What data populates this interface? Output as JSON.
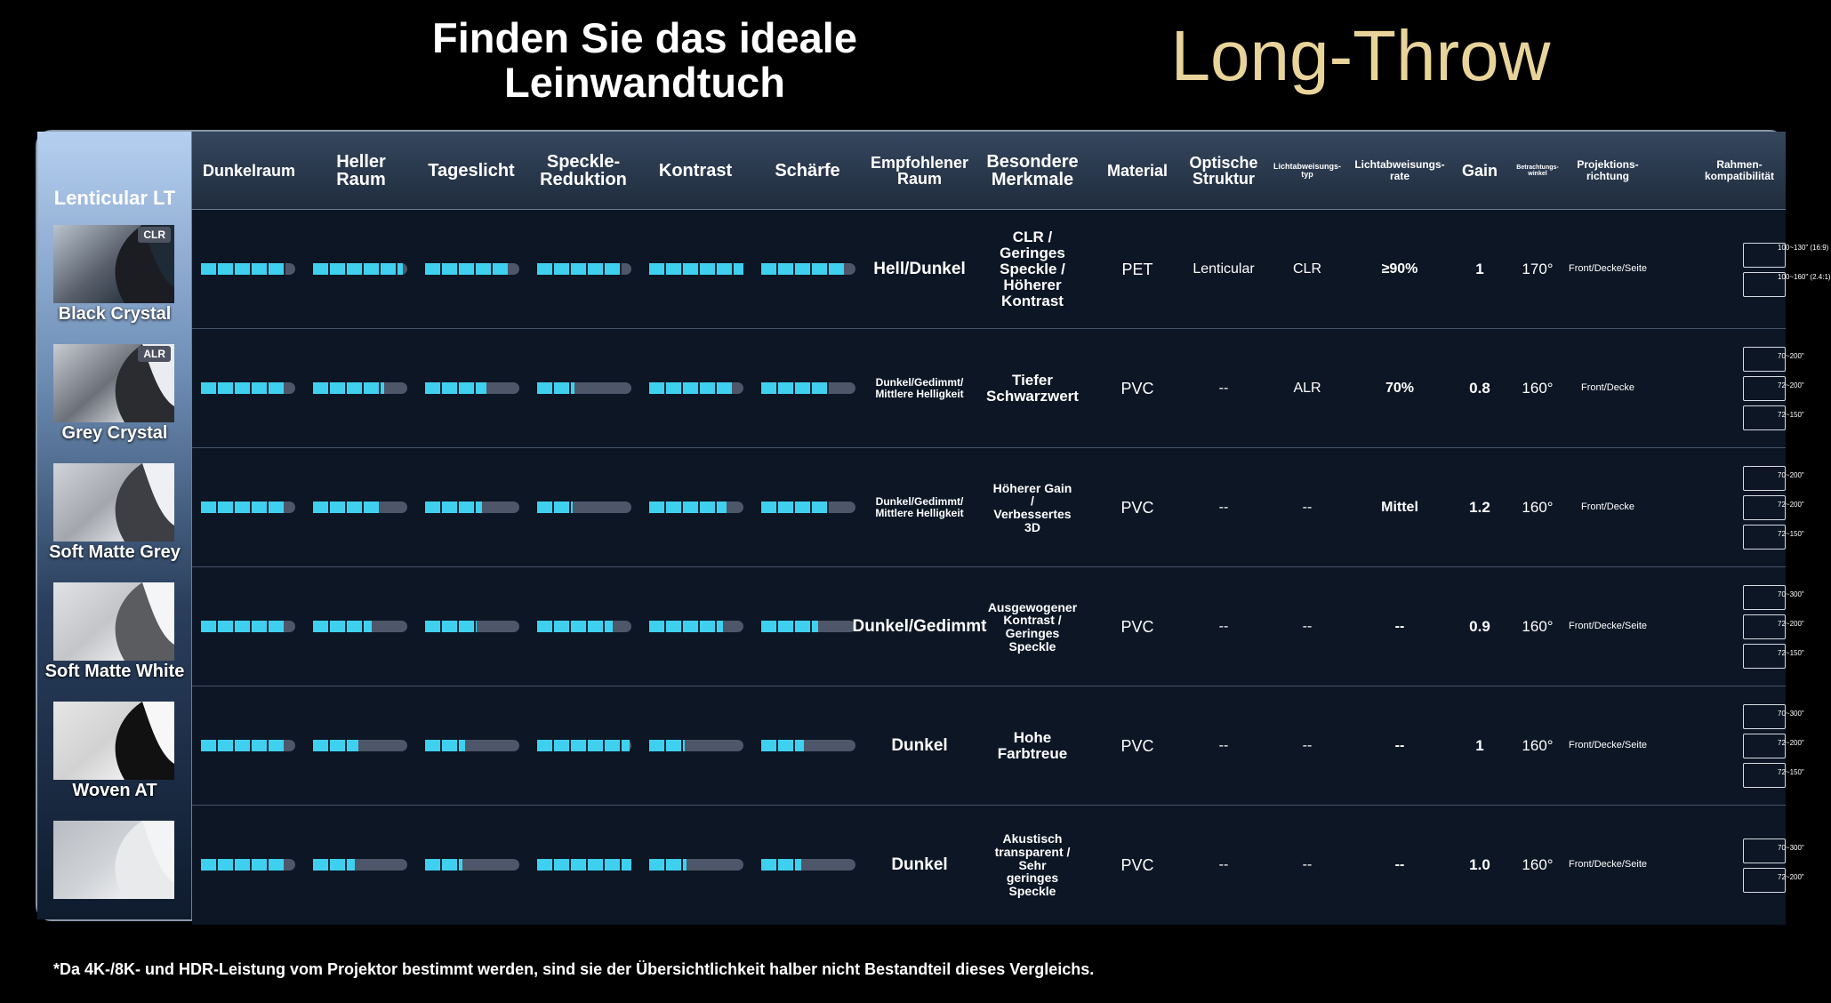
{
  "title": {
    "main_line1": "Finden Sie das ideale",
    "main_line2": "Leinwandtuch",
    "side": "Long-Throw"
  },
  "sidebar": {
    "title": "Lenticular LT"
  },
  "headers": {
    "dunkelraum": "Dunkelraum",
    "heller1": "Heller",
    "heller2": "Raum",
    "tageslicht": "Tageslicht",
    "speckle1": "Speckle-",
    "speckle2": "Reduktion",
    "kontrast": "Kontrast",
    "schaerfe": "Schärfe",
    "empf1": "Empfohlener",
    "empf2": "Raum",
    "bes1": "Besondere",
    "bes2": "Merkmale",
    "material": "Material",
    "opt1": "Optische",
    "opt2": "Struktur",
    "lat1": "Lichtabweisungs-",
    "lat2": "typ",
    "lar1": "Lichtabweisungs-",
    "lar2": "rate",
    "gain": "Gain",
    "bw1": "Betrachtungs-",
    "bw2": "winkel",
    "pr1": "Projektions-",
    "pr2": "richtung",
    "rk1": "Rahmen-",
    "rk2": "kompatibilität"
  },
  "rows": [
    {
      "name": "Black Crystal",
      "badge": "CLR",
      "bars": [
        0.9,
        0.95,
        0.88,
        0.9,
        1.0,
        0.88
      ],
      "room": "Hell/Dunkel",
      "features": [
        "CLR /",
        "Geringes",
        "Speckle /",
        "Höherer",
        "Kontrast"
      ],
      "material": "PET",
      "structure": "Lenticular",
      "type": "CLR",
      "rate": "≥90%",
      "gain": "1",
      "angle": "170°",
      "direction": "Front/Decke/Seite",
      "frames": [
        "100~130\" (16:9)",
        "100~160\" (2.4:1)"
      ]
    },
    {
      "name": "Grey Crystal",
      "badge": "ALR",
      "bars": [
        0.88,
        0.75,
        0.65,
        0.4,
        0.88,
        0.72
      ],
      "room": "Dunkel/Gedimmt/ Mittlere Helligkeit",
      "features": [
        "Tiefer",
        "Schwarzwert"
      ],
      "material": "PVC",
      "structure": "--",
      "type": "ALR",
      "rate": "70%",
      "gain": "0.8",
      "angle": "160°",
      "direction": "Front/Decke",
      "frames": [
        "70~200\"",
        "72~200\"",
        "72~150\""
      ]
    },
    {
      "name": "Soft Matte Grey",
      "badge": "",
      "bars": [
        0.88,
        0.7,
        0.6,
        0.38,
        0.82,
        0.72
      ],
      "room": "Dunkel/Gedimmt/ Mittlere Helligkeit",
      "features": [
        "Höherer Gain",
        "/",
        "Verbessertes",
        "3D"
      ],
      "material": "PVC",
      "structure": "--",
      "type": "--",
      "rate": "Mittel",
      "gain": "1.2",
      "angle": "160°",
      "direction": "Front/Decke",
      "frames": [
        "70~200\"",
        "72~200\"",
        "72~150\""
      ]
    },
    {
      "name": "Soft Matte White",
      "badge": "",
      "bars": [
        0.88,
        0.62,
        0.55,
        0.8,
        0.78,
        0.6
      ],
      "room": "Dunkel/Gedimmt",
      "features": [
        "Ausgewogener",
        "Kontrast /",
        "Geringes",
        "Speckle"
      ],
      "material": "PVC",
      "structure": "--",
      "type": "--",
      "rate": "--",
      "gain": "0.9",
      "angle": "160°",
      "direction": "Front/Decke/Seite",
      "frames": [
        "70~300\"",
        "72~200\"",
        "72~150\""
      ]
    },
    {
      "name": "Woven AT",
      "badge": "",
      "bars": [
        0.88,
        0.48,
        0.42,
        0.98,
        0.38,
        0.45
      ],
      "room": "Dunkel",
      "features": [
        "Hohe",
        "Farbtreue"
      ],
      "material": "PVC",
      "structure": "--",
      "type": "--",
      "rate": "--",
      "gain": "1",
      "angle": "160°",
      "direction": "Front/Decke/Seite",
      "frames": [
        "70~300\"",
        "72~200\"",
        "72~150\""
      ]
    },
    {
      "name": "",
      "badge": "",
      "bars": [
        0.88,
        0.44,
        0.4,
        1.0,
        0.4,
        0.42
      ],
      "room": "Dunkel",
      "features": [
        "Akustisch",
        "transparent /",
        "Sehr",
        "geringes",
        "Speckle"
      ],
      "material": "PVC",
      "structure": "--",
      "type": "--",
      "rate": "--",
      "gain": "1.0",
      "angle": "160°",
      "direction": "Front/Decke/Seite",
      "frames": [
        "70~300\"",
        "72~200\""
      ]
    }
  ],
  "footnote": "*Da 4K-/8K- und HDR-Leistung vom Projektor bestimmt werden, sind sie der Übersichtlichkeit halber nicht Bestandteil dieses Vergleichs."
}
